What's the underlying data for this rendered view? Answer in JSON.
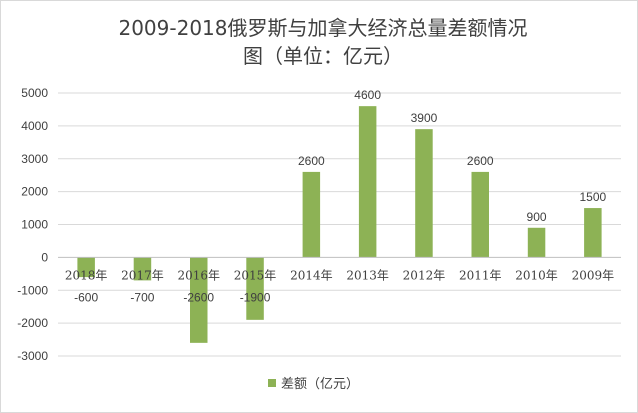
{
  "chart_data": {
    "type": "bar",
    "title_line1": "2009-2018俄罗斯与加拿大经济总量差额情况",
    "title_line2": "图（单位：亿元）",
    "categories": [
      "2018年",
      "2017年",
      "2016年",
      "2015年",
      "2014年",
      "2013年",
      "2012年",
      "2011年",
      "2010年",
      "2009年"
    ],
    "series": [
      {
        "name": "差额（亿元）",
        "values": [
          -600,
          -700,
          -2600,
          -1900,
          2600,
          4600,
          3900,
          2600,
          900,
          1500
        ],
        "color": "#8db255"
      }
    ],
    "ylim": [
      -3000,
      5000
    ],
    "yticks": [
      -3000,
      -2000,
      -1000,
      0,
      1000,
      2000,
      3000,
      4000,
      5000
    ],
    "grid": true,
    "legend_position": "bottom",
    "gridline_color": "#d9d9d9",
    "text_color": "#404040"
  }
}
